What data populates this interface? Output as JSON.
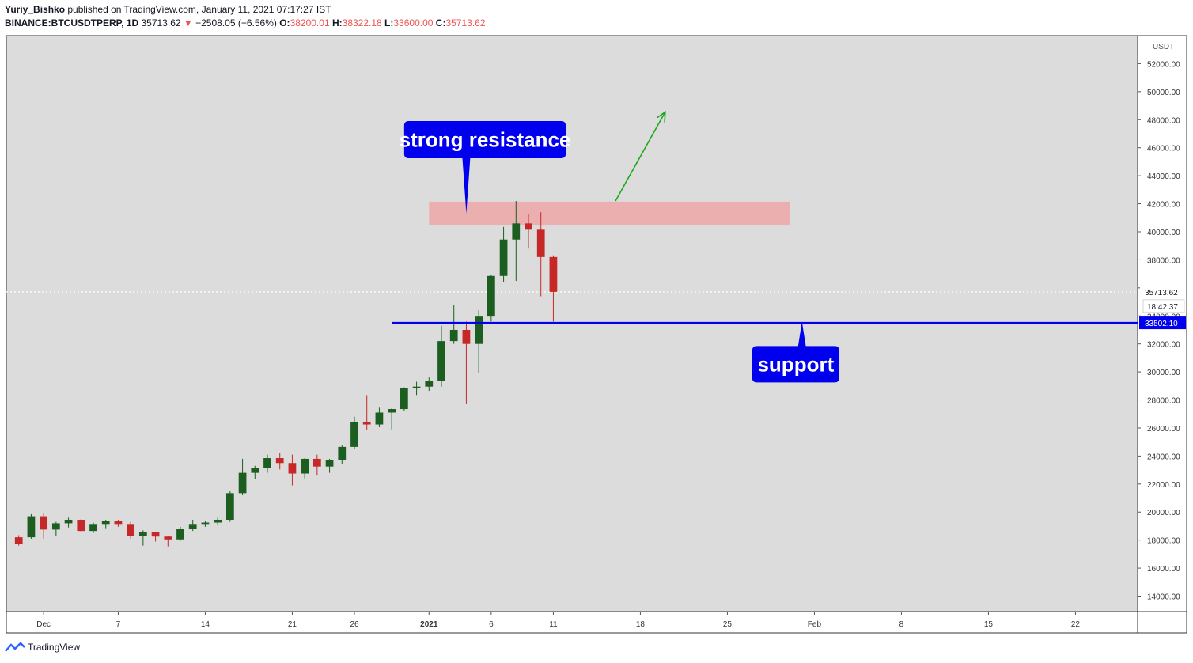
{
  "header": {
    "author": "Yuriy_Bishko",
    "published": "published on TradingView.com, January 11, 2021 07:17:27 IST",
    "symbol": "BINANCE:BTCUSDTPERP, 1D",
    "last": "35713.62",
    "change_arrow": "▼",
    "change": "−2508.05 (−6.56%)",
    "o_label": "O:",
    "o": "38200.01",
    "h_label": "H:",
    "h": "38322.18",
    "l_label": "L:",
    "l": "33600.00",
    "c_label": "C:",
    "c": "35713.62"
  },
  "footer": {
    "brand": "TradingView",
    "icon": "tradingview-logo-icon"
  },
  "colors": {
    "up": "#1b5e20",
    "down": "#c62828",
    "annotation_blue": "#0000ee",
    "resistance_zone": "#f2a0a0",
    "plot_bg": "#dcdcdc"
  },
  "chart_data": {
    "type": "candlestick",
    "currency_label": "USDT",
    "ylim": [
      12900,
      54000
    ],
    "y_ticks": [
      14000,
      16000,
      18000,
      20000,
      22000,
      24000,
      26000,
      28000,
      30000,
      32000,
      34000,
      36000,
      38000,
      40000,
      42000,
      44000,
      46000,
      48000,
      50000,
      52000
    ],
    "y_tick_labels": [
      "14000.00",
      "16000.00",
      "18000.00",
      "20000.00",
      "22000.00",
      "24000.00",
      "26000.00",
      "28000.00",
      "30000.00",
      "32000.00",
      "34000.00",
      "36000.00",
      "38000.00",
      "40000.00",
      "42000.00",
      "44000.00",
      "46000.00",
      "48000.00",
      "50000.00",
      "52000.00"
    ],
    "x_domain": [
      "2020-11-28",
      "2021-02-27"
    ],
    "x_ticks": [
      {
        "date": "2020-12-01",
        "label": "Dec",
        "bold": false
      },
      {
        "date": "2020-12-07",
        "label": "7",
        "bold": false
      },
      {
        "date": "2020-12-14",
        "label": "14",
        "bold": false
      },
      {
        "date": "2020-12-21",
        "label": "21",
        "bold": false
      },
      {
        "date": "2020-12-26",
        "label": "26",
        "bold": false
      },
      {
        "date": "2021-01-01",
        "label": "2021",
        "bold": true
      },
      {
        "date": "2021-01-06",
        "label": "6",
        "bold": false
      },
      {
        "date": "2021-01-11",
        "label": "11",
        "bold": false
      },
      {
        "date": "2021-01-18",
        "label": "18",
        "bold": false
      },
      {
        "date": "2021-01-25",
        "label": "25",
        "bold": false
      },
      {
        "date": "2021-02-01",
        "label": "Feb",
        "bold": false
      },
      {
        "date": "2021-02-08",
        "label": "8",
        "bold": false
      },
      {
        "date": "2021-02-15",
        "label": "15",
        "bold": false
      },
      {
        "date": "2021-02-22",
        "label": "22",
        "bold": false
      }
    ],
    "candles": [
      {
        "d": "2020-11-29",
        "o": 18200,
        "h": 18350,
        "l": 17600,
        "c": 17750
      },
      {
        "d": "2020-11-30",
        "o": 18200,
        "h": 19850,
        "l": 18100,
        "c": 19700
      },
      {
        "d": "2020-12-01",
        "o": 19700,
        "h": 19900,
        "l": 18100,
        "c": 18750
      },
      {
        "d": "2020-12-02",
        "o": 18750,
        "h": 19300,
        "l": 18300,
        "c": 19200
      },
      {
        "d": "2020-12-03",
        "o": 19200,
        "h": 19600,
        "l": 18900,
        "c": 19450
      },
      {
        "d": "2020-12-04",
        "o": 19450,
        "h": 19500,
        "l": 18550,
        "c": 18650
      },
      {
        "d": "2020-12-05",
        "o": 18650,
        "h": 19250,
        "l": 18500,
        "c": 19150
      },
      {
        "d": "2020-12-06",
        "o": 19150,
        "h": 19450,
        "l": 18850,
        "c": 19350
      },
      {
        "d": "2020-12-07",
        "o": 19350,
        "h": 19450,
        "l": 18950,
        "c": 19150
      },
      {
        "d": "2020-12-08",
        "o": 19150,
        "h": 19300,
        "l": 18100,
        "c": 18300
      },
      {
        "d": "2020-12-09",
        "o": 18300,
        "h": 18700,
        "l": 17600,
        "c": 18550
      },
      {
        "d": "2020-12-10",
        "o": 18550,
        "h": 18600,
        "l": 17900,
        "c": 18250
      },
      {
        "d": "2020-12-11",
        "o": 18250,
        "h": 18300,
        "l": 17550,
        "c": 18050
      },
      {
        "d": "2020-12-12",
        "o": 18050,
        "h": 18950,
        "l": 17950,
        "c": 18800
      },
      {
        "d": "2020-12-13",
        "o": 18800,
        "h": 19450,
        "l": 18650,
        "c": 19150
      },
      {
        "d": "2020-12-14",
        "o": 19150,
        "h": 19350,
        "l": 18950,
        "c": 19250
      },
      {
        "d": "2020-12-15",
        "o": 19250,
        "h": 19600,
        "l": 19050,
        "c": 19450
      },
      {
        "d": "2020-12-16",
        "o": 19450,
        "h": 21500,
        "l": 19300,
        "c": 21350
      },
      {
        "d": "2020-12-17",
        "o": 21350,
        "h": 23800,
        "l": 21200,
        "c": 22800
      },
      {
        "d": "2020-12-18",
        "o": 22800,
        "h": 23300,
        "l": 22350,
        "c": 23150
      },
      {
        "d": "2020-12-19",
        "o": 23150,
        "h": 24100,
        "l": 22800,
        "c": 23850
      },
      {
        "d": "2020-12-20",
        "o": 23850,
        "h": 24250,
        "l": 23050,
        "c": 23500
      },
      {
        "d": "2020-12-21",
        "o": 23500,
        "h": 24100,
        "l": 21900,
        "c": 22750
      },
      {
        "d": "2020-12-22",
        "o": 22750,
        "h": 23850,
        "l": 22400,
        "c": 23800
      },
      {
        "d": "2020-12-23",
        "o": 23800,
        "h": 24100,
        "l": 22600,
        "c": 23250
      },
      {
        "d": "2020-12-24",
        "o": 23250,
        "h": 23800,
        "l": 22800,
        "c": 23700
      },
      {
        "d": "2020-12-25",
        "o": 23700,
        "h": 24750,
        "l": 23400,
        "c": 24650
      },
      {
        "d": "2020-12-26",
        "o": 24650,
        "h": 26800,
        "l": 24500,
        "c": 26450
      },
      {
        "d": "2020-12-27",
        "o": 26450,
        "h": 28350,
        "l": 25850,
        "c": 26250
      },
      {
        "d": "2020-12-28",
        "o": 26250,
        "h": 27450,
        "l": 26050,
        "c": 27100
      },
      {
        "d": "2020-12-29",
        "o": 27100,
        "h": 27400,
        "l": 25900,
        "c": 27350
      },
      {
        "d": "2020-12-30",
        "o": 27350,
        "h": 28900,
        "l": 27200,
        "c": 28850
      },
      {
        "d": "2020-12-31",
        "o": 28850,
        "h": 29300,
        "l": 28350,
        "c": 28950
      },
      {
        "d": "2021-01-01",
        "o": 28950,
        "h": 29600,
        "l": 28650,
        "c": 29350
      },
      {
        "d": "2021-01-02",
        "o": 29350,
        "h": 33300,
        "l": 28950,
        "c": 32200
      },
      {
        "d": "2021-01-03",
        "o": 32200,
        "h": 34800,
        "l": 32000,
        "c": 33000
      },
      {
        "d": "2021-01-04",
        "o": 33000,
        "h": 33600,
        "l": 27700,
        "c": 32000
      },
      {
        "d": "2021-01-05",
        "o": 32000,
        "h": 34400,
        "l": 29900,
        "c": 33950
      },
      {
        "d": "2021-01-06",
        "o": 33950,
        "h": 36900,
        "l": 33600,
        "c": 36850
      },
      {
        "d": "2021-01-07",
        "o": 36850,
        "h": 40350,
        "l": 36400,
        "c": 39450
      },
      {
        "d": "2021-01-08",
        "o": 39450,
        "h": 42200,
        "l": 36500,
        "c": 40600
      },
      {
        "d": "2021-01-09",
        "o": 40600,
        "h": 41300,
        "l": 38800,
        "c": 40150
      },
      {
        "d": "2021-01-10",
        "o": 40150,
        "h": 41400,
        "l": 35400,
        "c": 38200
      },
      {
        "d": "2021-01-11",
        "o": 38200,
        "h": 38322.18,
        "l": 33600,
        "c": 35713.62
      }
    ],
    "last_price": 35713.62,
    "last_price_label": "35713.62",
    "countdown_label": "18:42:37",
    "support_level": 33502.1,
    "support_level_label": "33502.10",
    "resistance_zone": {
      "x_from": "2021-01-01",
      "x_to": "2021-01-30",
      "y_from": 40450,
      "y_to": 42150
    },
    "support_line": {
      "x_from": "2020-12-29",
      "x_to": "2021-02-27",
      "y": 33502.1
    },
    "arrow": {
      "x_from": "2021-01-16",
      "y_from": 42200,
      "x_to": "2021-01-20",
      "y_to": 48550
    },
    "callouts": [
      {
        "text": "strong resistance",
        "x_from": "2020-12-30",
        "x_to": "2021-01-12",
        "y_top": 47900,
        "y_bottom": 45250,
        "pointer_x": "2021-01-04",
        "pointer_y": 41300
      },
      {
        "text": "support",
        "x_from": "2021-01-27",
        "x_to": "2021-02-03",
        "y_top": 31850,
        "y_bottom": 29250,
        "pointer_x": "2021-01-31",
        "pointer_y": 33600
      }
    ]
  }
}
